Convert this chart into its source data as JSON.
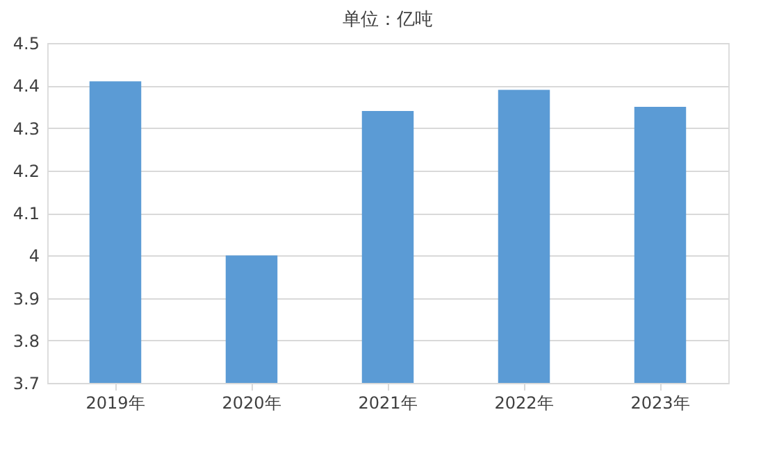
{
  "chart_data": {
    "type": "bar",
    "title": "单位：亿吨",
    "categories": [
      "2019年",
      "2020年",
      "2021年",
      "2022年",
      "2023年"
    ],
    "values": [
      4.41,
      4.0,
      4.34,
      4.39,
      4.35
    ],
    "color": "#5b9bd5",
    "ylim": [
      3.7,
      4.5
    ],
    "yticks": [
      3.7,
      3.8,
      3.9,
      4,
      4.1,
      4.2,
      4.3,
      4.4,
      4.5
    ],
    "grid": "y"
  }
}
